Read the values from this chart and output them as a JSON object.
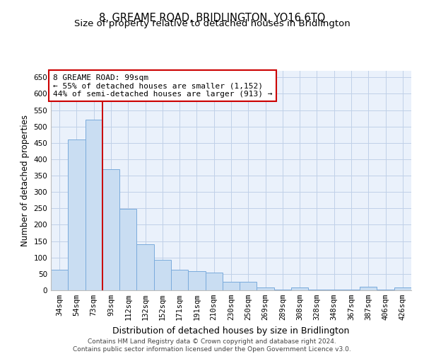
{
  "title": "8, GREAME ROAD, BRIDLINGTON, YO16 6TQ",
  "subtitle": "Size of property relative to detached houses in Bridlington",
  "xlabel": "Distribution of detached houses by size in Bridlington",
  "ylabel": "Number of detached properties",
  "categories": [
    "34sqm",
    "54sqm",
    "73sqm",
    "93sqm",
    "112sqm",
    "132sqm",
    "152sqm",
    "171sqm",
    "191sqm",
    "210sqm",
    "230sqm",
    "250sqm",
    "269sqm",
    "289sqm",
    "308sqm",
    "328sqm",
    "348sqm",
    "367sqm",
    "387sqm",
    "406sqm",
    "426sqm"
  ],
  "values": [
    63,
    460,
    520,
    370,
    248,
    140,
    93,
    63,
    58,
    55,
    27,
    27,
    8,
    3,
    8,
    3,
    3,
    3,
    10,
    3,
    8
  ],
  "bar_color": "#c9ddf2",
  "bar_edge_color": "#7aabdc",
  "bar_linewidth": 0.7,
  "vline_x_index": 3,
  "vline_color": "#cc0000",
  "vline_linewidth": 1.4,
  "annotation_text": "8 GREAME ROAD: 99sqm\n← 55% of detached houses are smaller (1,152)\n44% of semi-detached houses are larger (913) →",
  "annotation_box_color": "#ffffff",
  "annotation_box_edge": "#cc0000",
  "ylim": [
    0,
    670
  ],
  "yticks": [
    0,
    50,
    100,
    150,
    200,
    250,
    300,
    350,
    400,
    450,
    500,
    550,
    600,
    650
  ],
  "grid_color": "#c0d0e8",
  "bg_color": "#eaf1fb",
  "title_fontsize": 10.5,
  "subtitle_fontsize": 9.5,
  "tick_fontsize": 7.5,
  "ylabel_fontsize": 8.5,
  "xlabel_fontsize": 9,
  "footer_text": "Contains HM Land Registry data © Crown copyright and database right 2024.\nContains public sector information licensed under the Open Government Licence v3.0."
}
